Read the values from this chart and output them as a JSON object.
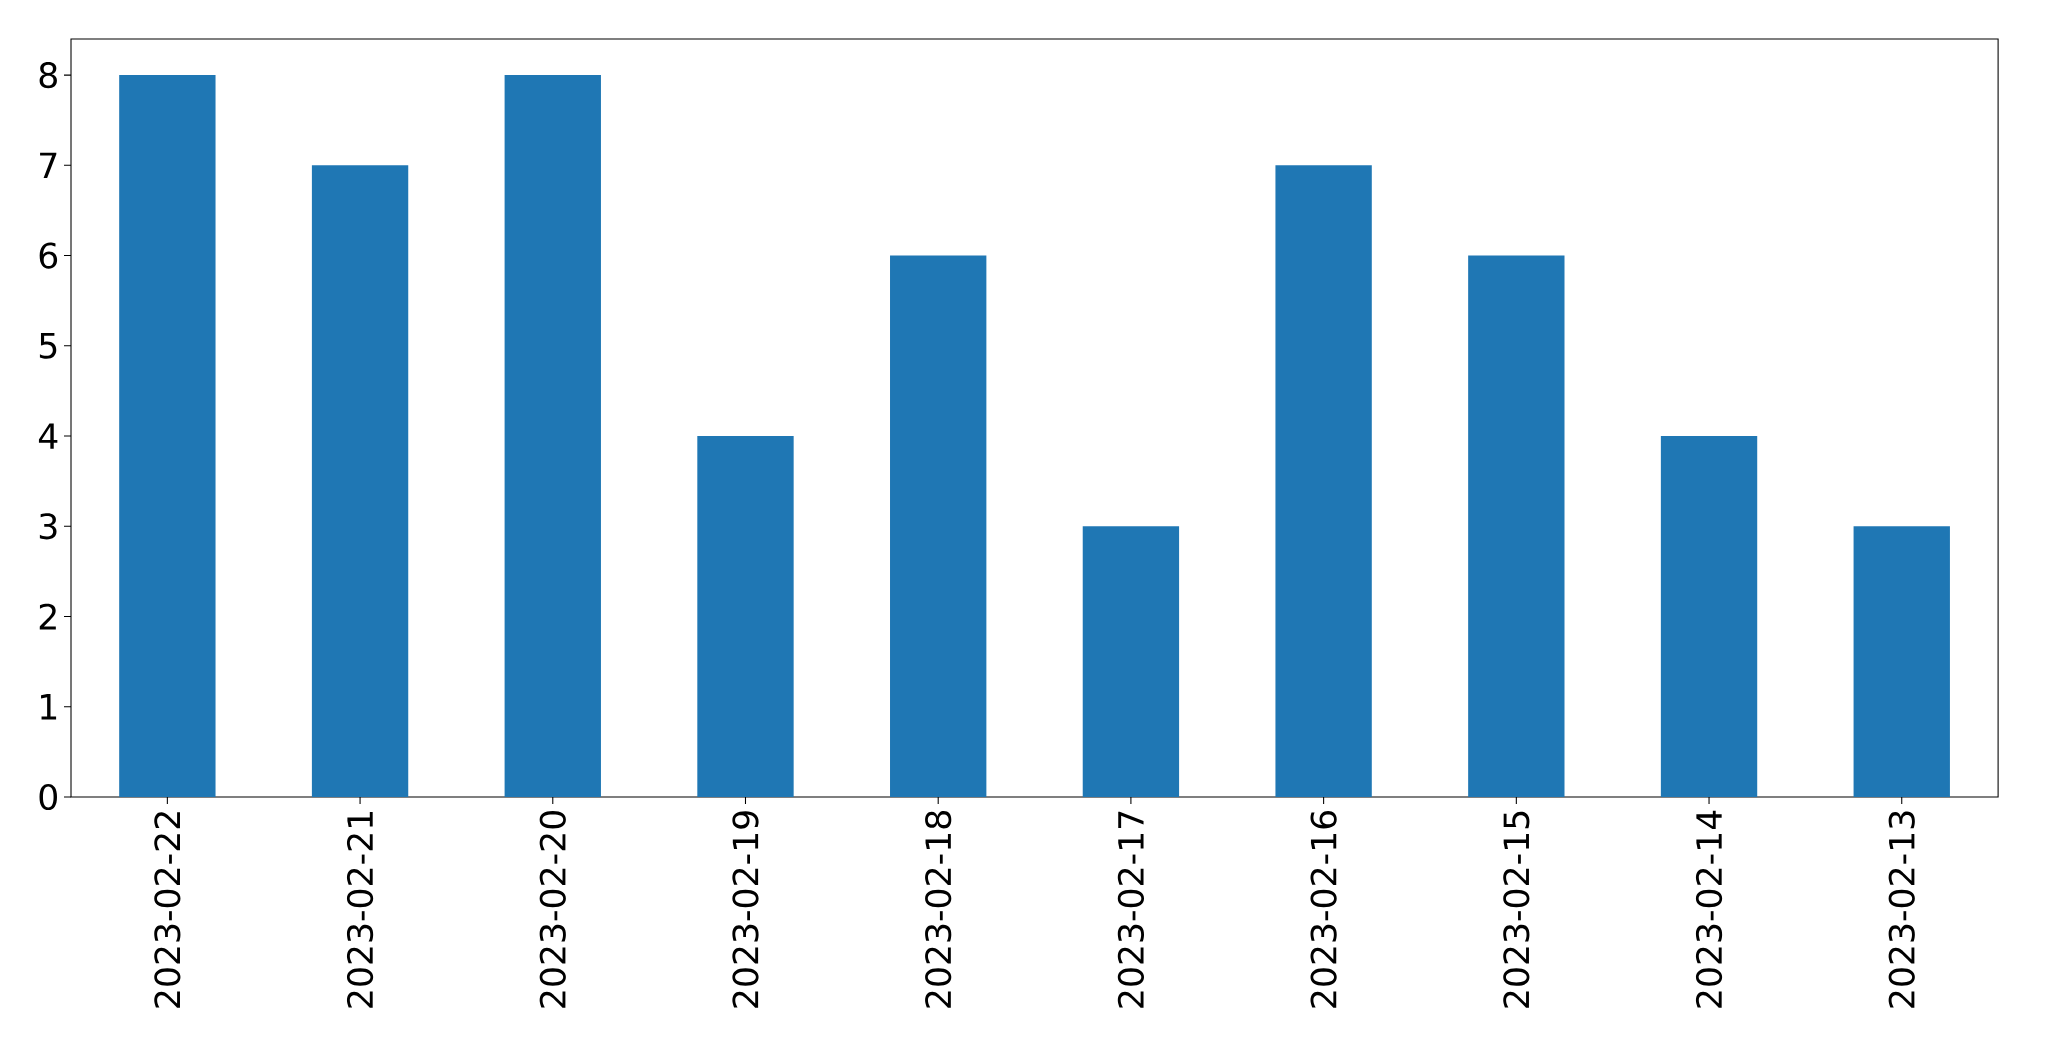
{
  "chart_data": {
    "type": "bar",
    "categories": [
      "2023-02-22",
      "2023-02-21",
      "2023-02-20",
      "2023-02-19",
      "2023-02-18",
      "2023-02-17",
      "2023-02-16",
      "2023-02-15",
      "2023-02-14",
      "2023-02-13"
    ],
    "values": [
      8,
      7,
      8,
      4,
      6,
      3,
      7,
      6,
      4,
      3
    ],
    "color": "#1f77b4",
    "ylim": [
      0,
      8.4
    ],
    "yticks": [
      0,
      1,
      2,
      3,
      4,
      5,
      6,
      7,
      8
    ]
  }
}
